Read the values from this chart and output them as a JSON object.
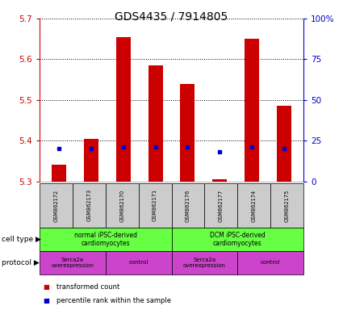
{
  "title": "GDS4435 / 7914805",
  "samples": [
    "GSM862172",
    "GSM862173",
    "GSM862170",
    "GSM862171",
    "GSM862176",
    "GSM862177",
    "GSM862174",
    "GSM862175"
  ],
  "bar_values": [
    5.34,
    5.405,
    5.655,
    5.585,
    5.54,
    5.305,
    5.65,
    5.485
  ],
  "percentile_pct": [
    20,
    20,
    21,
    21,
    21,
    18,
    21,
    20
  ],
  "ylim_left": [
    5.3,
    5.7
  ],
  "ylim_right": [
    0,
    100
  ],
  "yticks_left": [
    5.3,
    5.4,
    5.5,
    5.6,
    5.7
  ],
  "yticks_right": [
    0,
    25,
    50,
    75,
    100
  ],
  "ytick_labels_right": [
    "0",
    "25",
    "50",
    "75",
    "100%"
  ],
  "bar_color": "#cc0000",
  "dot_color": "#0000cc",
  "bar_base": 5.3,
  "cell_type_labels": [
    "normal iPSC-derived\ncardiomyocytes",
    "DCM iPSC-derived\ncardiomyocytes"
  ],
  "cell_type_ranges": [
    [
      0,
      4
    ],
    [
      4,
      8
    ]
  ],
  "cell_type_color": "#66ff44",
  "protocol_labels": [
    "Serca2a\noverexpression",
    "control",
    "Serca2a\noverexpression",
    "control"
  ],
  "protocol_ranges": [
    [
      0,
      2
    ],
    [
      2,
      4
    ],
    [
      4,
      6
    ],
    [
      6,
      8
    ]
  ],
  "protocol_color": "#cc44cc",
  "sample_box_color": "#cccccc",
  "left_axis_color": "#cc0000",
  "right_axis_color": "#0000cc",
  "legend_red": "transformed count",
  "legend_blue": "percentile rank within the sample",
  "label_cell_type": "cell type",
  "label_protocol": "protocol"
}
